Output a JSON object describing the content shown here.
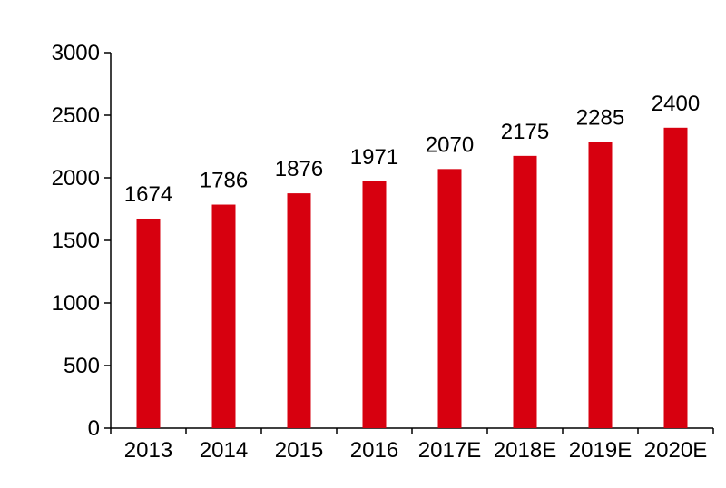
{
  "chart_data": {
    "type": "bar",
    "categories": [
      "2013",
      "2014",
      "2015",
      "2016",
      "2017E",
      "2018E",
      "2019E",
      "2020E"
    ],
    "values": [
      1674,
      1786,
      1876,
      1971,
      2070,
      2175,
      2285,
      2400
    ],
    "data_labels": [
      "1674",
      "1786",
      "1876",
      "1971",
      "2070",
      "2175",
      "2285",
      "2400"
    ],
    "y_ticks": [
      "0",
      "500",
      "1000",
      "1500",
      "2000",
      "2500",
      "3000"
    ],
    "ylim": [
      0,
      3000
    ],
    "title": "",
    "xlabel": "",
    "ylabel": "",
    "grid": false,
    "legend": "none",
    "bar_color": "#d7000f",
    "axis_color": "#000000"
  }
}
